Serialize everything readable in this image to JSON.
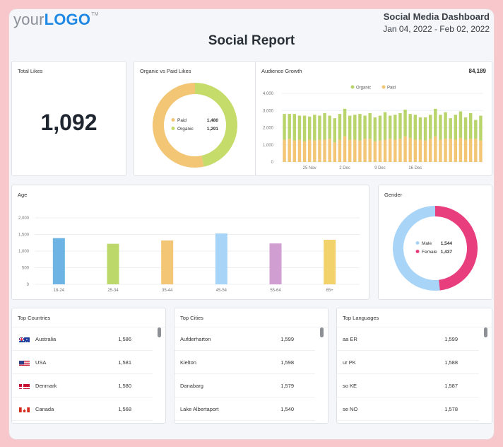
{
  "header": {
    "logo_prefix": "your",
    "logo_brand": "LOGO",
    "logo_tm": "TM",
    "dashboard_title": "Social Media Dashboard",
    "date_range": "Jan 04, 2022 - Feb 02, 2022",
    "report_title": "Social Report"
  },
  "total_likes": {
    "title": "Total Likes",
    "value": "1,092"
  },
  "organic_vs_paid": {
    "title": "Organic vs Paid Likes",
    "legend": [
      {
        "label": "Paid",
        "value": "1,480",
        "color": "#f2c675"
      },
      {
        "label": "Organic",
        "value": "1,291",
        "color": "#c5db6a"
      }
    ]
  },
  "audience_growth": {
    "title": "Audience Growth",
    "total": "84,189",
    "legend": [
      {
        "label": "Organic",
        "color": "#b8d46a"
      },
      {
        "label": "Paid",
        "color": "#f2c675"
      }
    ]
  },
  "age": {
    "title": "Age"
  },
  "gender": {
    "title": "Gender",
    "legend": [
      {
        "label": "Male",
        "value": "1,544",
        "color": "#a8d4f7"
      },
      {
        "label": "Female",
        "value": "1,437",
        "color": "#e83e7d"
      }
    ]
  },
  "top_countries": {
    "title": "Top Countries",
    "rows": [
      {
        "name": "Australia",
        "value": "1,586",
        "flag": "australia-flag-icon"
      },
      {
        "name": "USA",
        "value": "1,581",
        "flag": "usa-flag-icon"
      },
      {
        "name": "Denmark",
        "value": "1,580",
        "flag": "denmark-flag-icon"
      },
      {
        "name": "Canada",
        "value": "1,568",
        "flag": "canada-flag-icon"
      }
    ]
  },
  "top_cities": {
    "title": "Top Cities",
    "rows": [
      {
        "name": "Aufderharton",
        "value": "1,599"
      },
      {
        "name": "Kielton",
        "value": "1,598"
      },
      {
        "name": "Danabarg",
        "value": "1,579"
      },
      {
        "name": "Lake Albertaport",
        "value": "1,540"
      }
    ]
  },
  "top_languages": {
    "title": "Top Languages",
    "rows": [
      {
        "name": "aa ER",
        "value": "1,599"
      },
      {
        "name": "ur PK",
        "value": "1,588"
      },
      {
        "name": "so KE",
        "value": "1,587"
      },
      {
        "name": "se NO",
        "value": "1,578"
      }
    ]
  },
  "chart_data": [
    {
      "type": "pie",
      "labels": [
        "Paid",
        "Organic"
      ],
      "values": [
        1480,
        1291
      ],
      "colors": [
        "#f2c675",
        "#c5db6a"
      ]
    },
    {
      "type": "bar",
      "stacked": true,
      "x_ticks": [
        "25 Nov",
        "2 Dec",
        "9 Dec",
        "16 Dec"
      ],
      "y_ticks": [
        "0",
        "1,000",
        "2,000",
        "3,000",
        "4,000"
      ],
      "ylim": [
        0,
        4000
      ],
      "grid": true,
      "legend_position": "top-center",
      "series": [
        {
          "name": "Organic",
          "color": "#b8d46a",
          "values": [
            1500,
            1450,
            1550,
            1400,
            1500,
            1350,
            1500,
            1400,
            1550,
            1350,
            1400,
            1500,
            1600,
            1400,
            1450,
            1550,
            1350,
            1500,
            1400,
            1450,
            1600,
            1350,
            1450,
            1500,
            1550,
            1400,
            1450,
            1300,
            1350,
            1400,
            1600,
            1450,
            1550,
            1200,
            1450,
            1550,
            1300,
            1500,
            1100,
            1450
          ]
        },
        {
          "name": "Paid",
          "color": "#f2c675",
          "values": [
            1300,
            1350,
            1250,
            1300,
            1200,
            1300,
            1250,
            1300,
            1300,
            1350,
            1150,
            1300,
            1500,
            1300,
            1300,
            1250,
            1350,
            1350,
            1200,
            1250,
            1300,
            1350,
            1300,
            1350,
            1500,
            1400,
            1300,
            1300,
            1250,
            1350,
            1500,
            1300,
            1350,
            1350,
            1300,
            1400,
            1300,
            1350,
            1350,
            1250
          ]
        }
      ]
    },
    {
      "type": "bar",
      "categories": [
        "18-24",
        "25-34",
        "35-44",
        "45-54",
        "55-64",
        "65+"
      ],
      "values": [
        1390,
        1220,
        1320,
        1530,
        1230,
        1340
      ],
      "colors": [
        "#6db3e4",
        "#bcd86b",
        "#f2c675",
        "#a8d4f7",
        "#d09ed0",
        "#f2d36b"
      ],
      "y_ticks": [
        "0",
        "500",
        "1,000",
        "1,500",
        "2,000"
      ],
      "ylim": [
        0,
        2000
      ],
      "grid": true
    },
    {
      "type": "pie",
      "labels": [
        "Male",
        "Female"
      ],
      "values": [
        1544,
        1437
      ],
      "colors": [
        "#a8d4f7",
        "#e83e7d"
      ]
    }
  ]
}
